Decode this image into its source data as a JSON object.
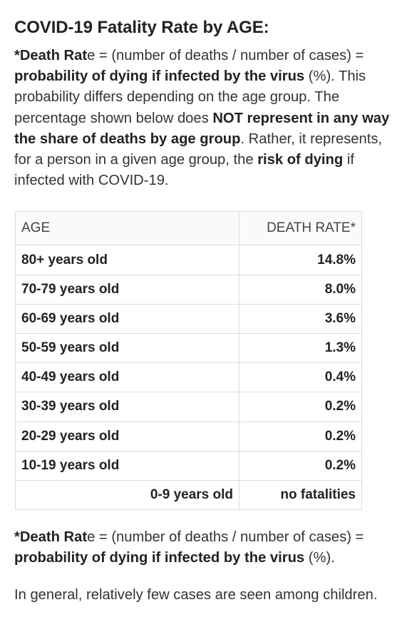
{
  "title": "COVID-19 Fatality Rate by AGE:",
  "intro": {
    "p1_bold": "*Death Rat",
    "p1_after_bold": "e = (number of deaths / number of cases) = ",
    "p1_bold2": "probability of dying if infected by the virus",
    "p1_text2": " (%). This probability differs depending on the age group. The percentage shown below does ",
    "p1_bold3": "NOT represent in any way the share of deaths by age group",
    "p1_text3": ". Rather, it represents, for a person in a given age group, the ",
    "p1_bold4": "risk of dying",
    "p1_text4": " if infected with COVID-19."
  },
  "table": {
    "header_age": "AGE",
    "header_rate": "DEATH RATE*",
    "rows": [
      {
        "age": "80+ years old",
        "rate": "14.8%"
      },
      {
        "age": "70-79 years old",
        "rate": "8.0%"
      },
      {
        "age": "60-69 years old",
        "rate": "3.6%"
      },
      {
        "age": "50-59 years old",
        "rate": "1.3%"
      },
      {
        "age": "40-49 years old",
        "rate": "0.4%"
      },
      {
        "age": "30-39 years old",
        "rate": "0.2%"
      },
      {
        "age": "20-29 years old",
        "rate": "0.2%"
      },
      {
        "age": "10-19 years old",
        "rate": "0.2%"
      },
      {
        "age": "0-9 years old",
        "rate": "no fatalities"
      }
    ]
  },
  "footnote": {
    "bold": "*Death Rat",
    "after_bold": "e = (number of deaths / number of cases) = ",
    "bold2": "probability of dying if infected by the virus",
    "text2": " (%)."
  },
  "closing": "In general, relatively few cases are seen among children."
}
